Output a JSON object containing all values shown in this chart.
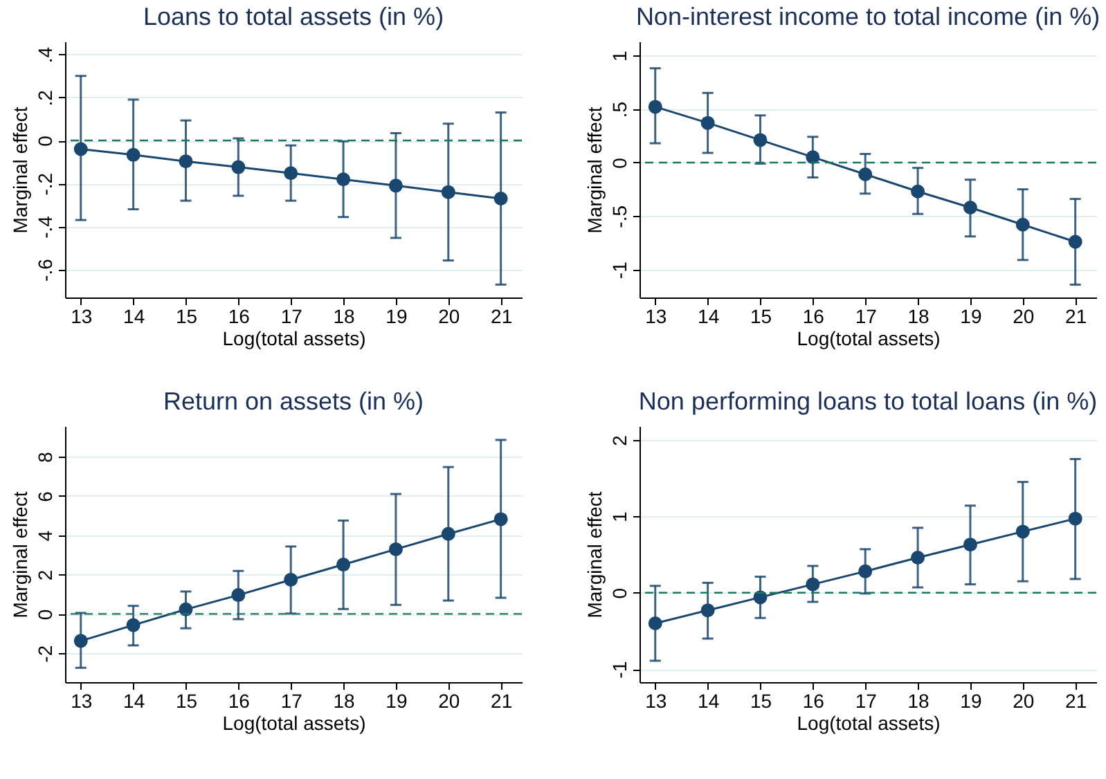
{
  "chart_data": [
    {
      "type": "line",
      "title": "Loans to total assets (in %)",
      "xlabel": "Log(total assets)",
      "ylabel": "Marginal effect",
      "x": [
        13,
        14,
        15,
        16,
        17,
        18,
        19,
        20,
        21
      ],
      "series": [
        {
          "color": "#1a476f",
          "values": [
            -0.04,
            -0.067,
            -0.097,
            -0.124,
            -0.152,
            -0.181,
            -0.21,
            -0.24,
            -0.27
          ],
          "errors": [
            [
              -0.37,
              0.3
            ],
            [
              -0.32,
              0.19
            ],
            [
              -0.28,
              0.093
            ],
            [
              -0.257,
              0.01
            ],
            [
              -0.28,
              -0.023
            ],
            [
              -0.356,
              -0.004
            ],
            [
              -0.453,
              0.034
            ],
            [
              -0.558,
              0.078
            ],
            [
              -0.67,
              0.13
            ]
          ]
        }
      ],
      "xlim": [
        12.7,
        21.4
      ],
      "xticks": [
        13,
        14,
        15,
        16,
        17,
        18,
        19,
        20,
        21
      ],
      "ylim": [
        -0.73,
        0.46
      ],
      "yticks": [
        {
          "value": -0.6,
          "label": "-.6"
        },
        {
          "value": -0.4,
          "label": "-.4"
        },
        {
          "value": -0.2,
          "label": "-.2"
        },
        0,
        {
          "value": 0.2,
          "label": ".2"
        },
        {
          "value": 0.4,
          "label": ".4"
        }
      ],
      "ref_lines": [
        {
          "axis": "y",
          "value": 0,
          "color": "#1a7a5e",
          "line_style": "dashed"
        }
      ],
      "grid": "y",
      "marker": "circle",
      "line_style": "solid"
    },
    {
      "type": "line",
      "title": "Non-interest income to total income  (in %)",
      "xlabel": "Log(total assets)",
      "ylabel": "Marginal effect",
      "x": [
        13,
        14,
        15,
        16,
        17,
        18,
        19,
        20,
        21
      ],
      "series": [
        {
          "color": "#1a476f",
          "values": [
            0.52,
            0.37,
            0.21,
            0.05,
            -0.11,
            -0.27,
            -0.42,
            -0.58,
            -0.74
          ],
          "errors": [
            [
              0.18,
              0.88
            ],
            [
              0.09,
              0.65
            ],
            [
              -0.01,
              0.44
            ],
            [
              -0.14,
              0.24
            ],
            [
              -0.29,
              0.08
            ],
            [
              -0.48,
              -0.05
            ],
            [
              -0.69,
              -0.16
            ],
            [
              -0.91,
              -0.25
            ],
            [
              -1.14,
              -0.34
            ]
          ]
        }
      ],
      "xlim": [
        12.7,
        21.4
      ],
      "xticks": [
        13,
        14,
        15,
        16,
        17,
        18,
        19,
        20,
        21
      ],
      "ylim": [
        -1.26,
        1.13
      ],
      "yticks": [
        -1,
        {
          "value": -0.5,
          "label": "-.5"
        },
        0,
        {
          "value": 0.5,
          "label": ".5"
        },
        1
      ],
      "ref_lines": [
        {
          "axis": "y",
          "value": 0,
          "color": "#1a7a5e",
          "line_style": "dashed"
        }
      ],
      "grid": "y",
      "marker": "circle",
      "line_style": "solid"
    },
    {
      "type": "line",
      "title": "Return on assets (in %)",
      "xlabel": "Log(total assets)",
      "ylabel": "Marginal effect",
      "x": [
        13,
        14,
        15,
        16,
        17,
        18,
        19,
        20,
        21
      ],
      "series": [
        {
          "color": "#1a476f",
          "values": [
            -1.37,
            -0.57,
            0.23,
            0.96,
            1.74,
            2.51,
            3.29,
            4.07,
            4.82
          ],
          "errors": [
            [
              -2.74,
              0.05
            ],
            [
              -1.6,
              0.41
            ],
            [
              -0.73,
              1.14
            ],
            [
              -0.27,
              2.19
            ],
            [
              0.02,
              3.43
            ],
            [
              0.25,
              4.75
            ],
            [
              0.46,
              6.1
            ],
            [
              0.68,
              7.47
            ],
            [
              0.82,
              8.85
            ]
          ]
        }
      ],
      "xlim": [
        12.7,
        21.4
      ],
      "xticks": [
        13,
        14,
        15,
        16,
        17,
        18,
        19,
        20,
        21
      ],
      "ylim": [
        -3.47,
        9.55
      ],
      "yticks": [
        -2,
        0,
        2,
        4,
        6,
        8
      ],
      "ref_lines": [
        {
          "axis": "y",
          "value": 0,
          "color": "#1a7a5e",
          "line_style": "dashed"
        }
      ],
      "grid": "y",
      "marker": "circle",
      "line_style": "solid"
    },
    {
      "type": "line",
      "title": "Non performing loans to total loans (in %)",
      "xlabel": "Log(total assets)",
      "ylabel": "Marginal effect",
      "x": [
        13,
        14,
        15,
        16,
        17,
        18,
        19,
        20,
        21
      ],
      "series": [
        {
          "color": "#1a476f",
          "values": [
            -0.4,
            -0.23,
            -0.06,
            0.11,
            0.28,
            0.46,
            0.63,
            0.8,
            0.97
          ],
          "errors": [
            [
              -0.89,
              0.09
            ],
            [
              -0.6,
              0.13
            ],
            [
              -0.33,
              0.21
            ],
            [
              -0.12,
              0.35
            ],
            [
              -0.01,
              0.57
            ],
            [
              0.07,
              0.85
            ],
            [
              0.11,
              1.14
            ],
            [
              0.15,
              1.45
            ],
            [
              0.18,
              1.75
            ]
          ]
        }
      ],
      "xlim": [
        12.7,
        21.4
      ],
      "xticks": [
        13,
        14,
        15,
        16,
        17,
        18,
        19,
        20,
        21
      ],
      "ylim": [
        -1.17,
        2.18
      ],
      "yticks": [
        -1,
        0,
        1,
        2
      ],
      "ref_lines": [
        {
          "axis": "y",
          "value": 0,
          "color": "#1a7a5e",
          "line_style": "dashed"
        }
      ],
      "grid": "y",
      "marker": "circle",
      "line_style": "solid"
    }
  ]
}
